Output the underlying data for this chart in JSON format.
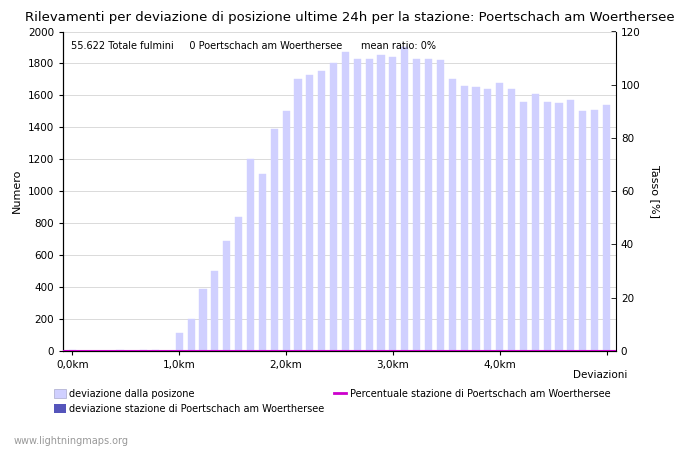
{
  "title": "Rilevamenti per deviazione di posizione ultime 24h per la stazione: Poertschach am Woerthersee",
  "subtitle": "55.622 Totale fulmini     0 Poertschach am Woerthersee      mean ratio: 0%",
  "ylabel_left": "Numero",
  "ylabel_right": "Tasso [%]",
  "xlabel_deviazioni": "Deviazioni",
  "watermark": "www.lightningmaps.org",
  "ylim_left": [
    0,
    2000
  ],
  "ylim_right": [
    0,
    120
  ],
  "yticks_left": [
    0,
    200,
    400,
    600,
    800,
    1000,
    1200,
    1400,
    1600,
    1800,
    2000
  ],
  "yticks_right": [
    0,
    20,
    40,
    60,
    80,
    100,
    120
  ],
  "xtick_positions": [
    0,
    9,
    18,
    27,
    36,
    45
  ],
  "xtick_labels": [
    "0,0km",
    "1,0km",
    "2,0km",
    "3,0km",
    "4,0km",
    ""
  ],
  "bar_values": [
    5,
    2,
    3,
    2,
    4,
    3,
    5,
    4,
    3,
    110,
    200,
    390,
    500,
    690,
    840,
    1200,
    1110,
    1390,
    1500,
    1700,
    1730,
    1750,
    1800,
    1870,
    1830,
    1830,
    1850,
    1840,
    1900,
    1830,
    1830,
    1820,
    1700,
    1660,
    1650,
    1640,
    1680,
    1640,
    1560,
    1610,
    1560,
    1550,
    1570,
    1500,
    1510,
    1540
  ],
  "bar_color_light": "#d0d0ff",
  "bar_color_station": "#5555bb",
  "line_color": "#cc00cc",
  "background_color": "#ffffff",
  "grid_color": "#cccccc",
  "title_fontsize": 9.5,
  "axis_fontsize": 8,
  "tick_fontsize": 7.5,
  "legend_label_light": "deviazione dalla posizone",
  "legend_label_station": "deviazione stazione di Poertschach am Woerthersee",
  "legend_label_line": "Percentuale stazione di Poertschach am Woerthersee"
}
